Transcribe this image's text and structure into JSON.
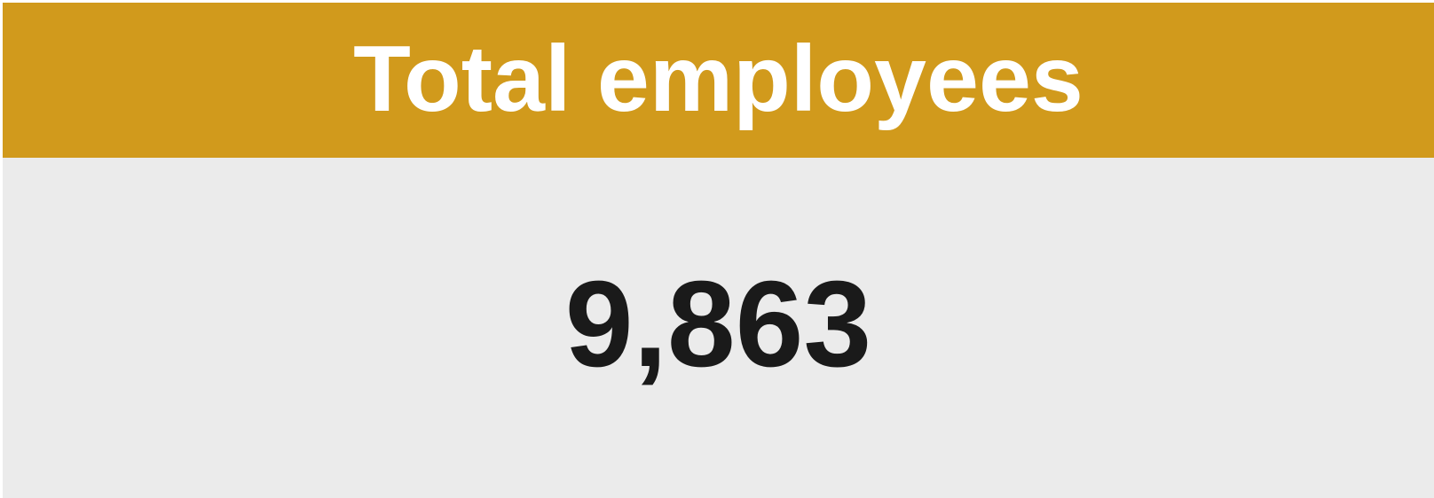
{
  "card": {
    "title": "Total employees",
    "value": "9,863"
  }
}
